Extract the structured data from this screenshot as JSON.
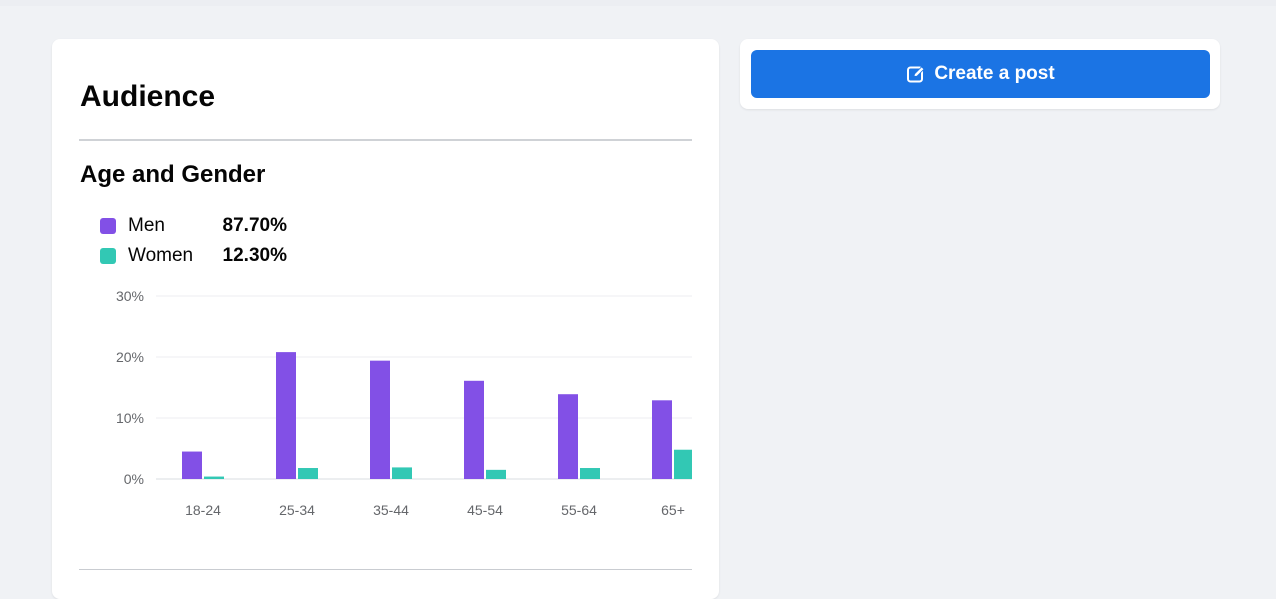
{
  "audience": {
    "title": "Audience",
    "section_title": "Age and Gender",
    "legend": [
      {
        "label": "Men",
        "value": "87.70%",
        "color": "#8250e6"
      },
      {
        "label": "Women",
        "value": "12.30%",
        "color": "#32c8b4"
      }
    ]
  },
  "sidebar": {
    "create_post_label": "Create a post",
    "create_post_icon": "edit-icon",
    "button_color": "#1b74e4"
  },
  "chart_data": {
    "type": "bar",
    "categories": [
      "18-24",
      "25-34",
      "35-44",
      "45-54",
      "55-64",
      "65+"
    ],
    "series": [
      {
        "name": "Men",
        "values": [
          4.5,
          20.8,
          19.4,
          16.1,
          13.9,
          12.9
        ],
        "color": "#8250e6"
      },
      {
        "name": "Women",
        "values": [
          0.4,
          1.8,
          1.9,
          1.5,
          1.8,
          4.8
        ],
        "color": "#32c8b4"
      }
    ],
    "yticks": [
      "0%",
      "10%",
      "20%",
      "30%"
    ],
    "ylim": [
      0,
      30
    ],
    "grid": true,
    "legend": "top-left"
  }
}
